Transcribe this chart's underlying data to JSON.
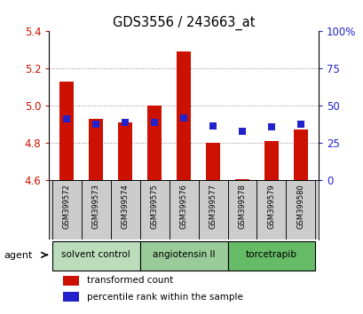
{
  "title": "GDS3556 / 243663_at",
  "samples": [
    "GSM399572",
    "GSM399573",
    "GSM399574",
    "GSM399575",
    "GSM399576",
    "GSM399577",
    "GSM399578",
    "GSM399579",
    "GSM399580"
  ],
  "red_values": [
    5.13,
    4.93,
    4.91,
    5.0,
    5.29,
    4.8,
    4.603,
    4.81,
    4.87
  ],
  "blue_values": [
    4.93,
    4.9,
    4.91,
    4.912,
    4.932,
    4.89,
    4.863,
    4.888,
    4.9
  ],
  "baseline": 4.6,
  "ylim_left": [
    4.6,
    5.4
  ],
  "ylim_right": [
    0,
    100
  ],
  "yticks_left": [
    4.6,
    4.8,
    5.0,
    5.2,
    5.4
  ],
  "yticks_right": [
    0,
    25,
    50,
    75,
    100
  ],
  "ytick_labels_right": [
    "0",
    "25",
    "50",
    "75",
    "100%"
  ],
  "red_color": "#cc1100",
  "blue_color": "#2222cc",
  "bar_width": 0.5,
  "groups": [
    {
      "label": "solvent control",
      "indices": [
        0,
        1,
        2
      ],
      "color": "#bbddbb"
    },
    {
      "label": "angiotensin II",
      "indices": [
        3,
        4,
        5
      ],
      "color": "#99cc99"
    },
    {
      "label": "torcetrapib",
      "indices": [
        6,
        7,
        8
      ],
      "color": "#66bb66"
    }
  ],
  "agent_label": "agent",
  "legend_red": "transformed count",
  "legend_blue": "percentile rank within the sample",
  "background_color": "#ffffff",
  "dotted_line_color": "#888888",
  "sample_box_color": "#cccccc",
  "group_colors": [
    "#bbddbb",
    "#99cc99",
    "#66bb66"
  ]
}
